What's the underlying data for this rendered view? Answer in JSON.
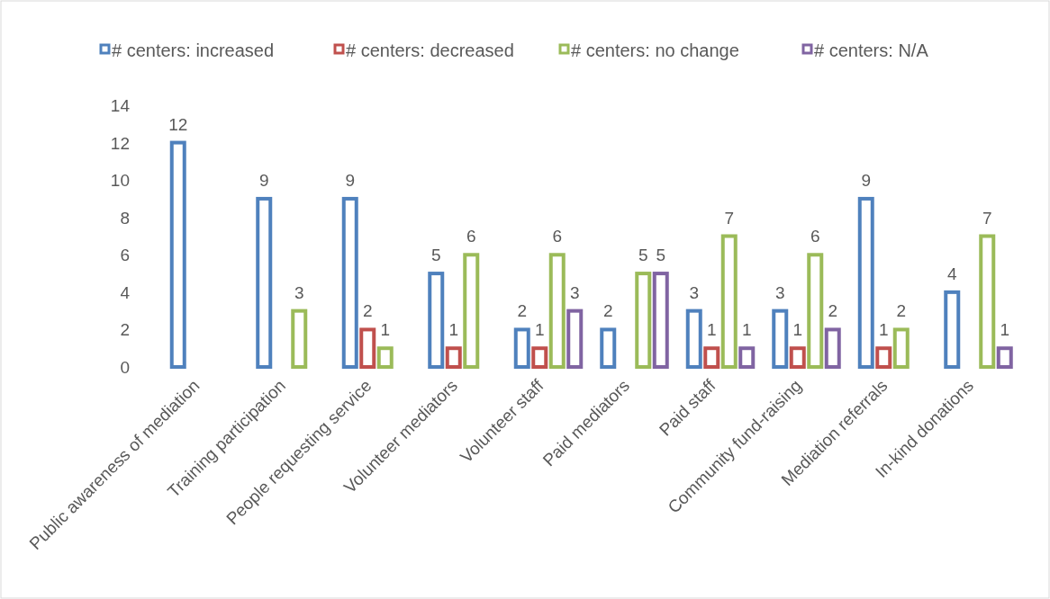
{
  "chart_data": {
    "type": "bar",
    "categories": [
      "Public awareness of mediation",
      "Training participation",
      "People requesting service",
      "Volunteer mediators",
      "Volunteer staff",
      "Paid mediators",
      "Paid staff",
      "Community fund-raising",
      "Mediation referrals",
      "In-kind donations"
    ],
    "series": [
      {
        "name": "# centers: increased",
        "color": "#4f81bd",
        "values": [
          12,
          9,
          9,
          5,
          2,
          2,
          3,
          3,
          9,
          4
        ]
      },
      {
        "name": "# centers: decreased",
        "color": "#c0504d",
        "values": [
          null,
          null,
          2,
          1,
          1,
          null,
          1,
          1,
          1,
          null
        ]
      },
      {
        "name": "# centers: no change",
        "color": "#9bbb59",
        "values": [
          null,
          3,
          1,
          6,
          6,
          5,
          7,
          6,
          2,
          7
        ]
      },
      {
        "name": "# centers: N/A",
        "color": "#8064a2",
        "values": [
          null,
          null,
          null,
          null,
          3,
          5,
          1,
          2,
          null,
          1
        ]
      }
    ],
    "ylim": [
      0,
      14
    ],
    "yticks": [
      0,
      2,
      4,
      6,
      8,
      10,
      12,
      14
    ],
    "data_labels": true,
    "legend": "top",
    "grid": false
  }
}
